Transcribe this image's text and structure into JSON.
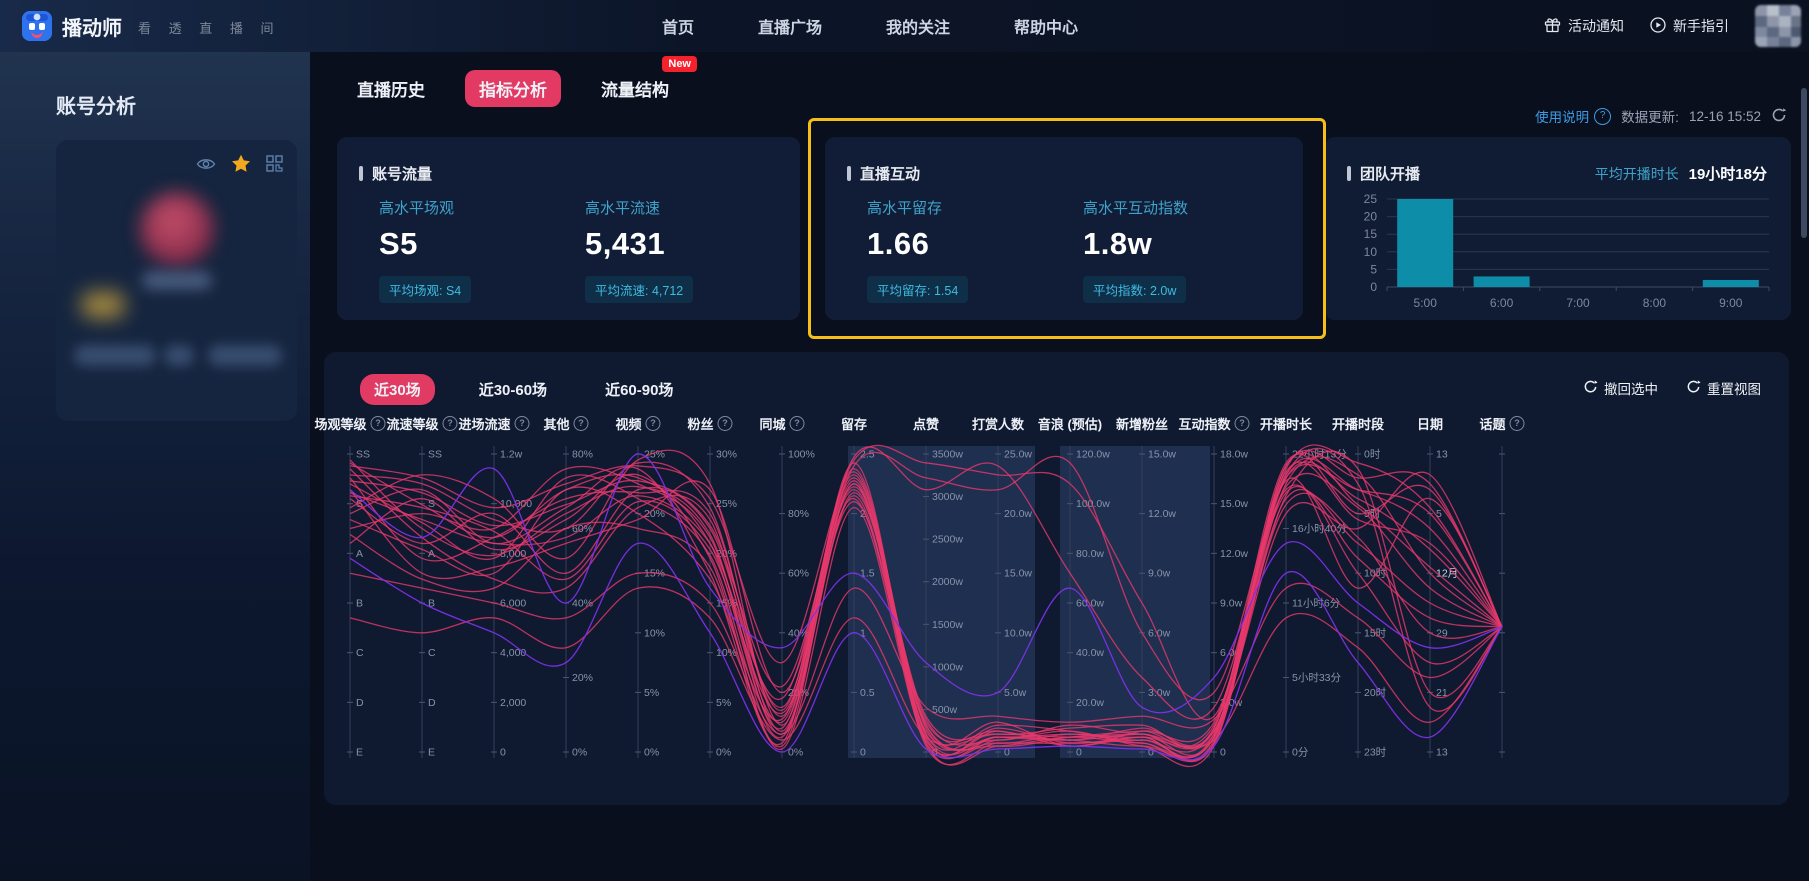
{
  "colors": {
    "accent_red": "#E23A63",
    "badge_new_red": "#F5212D",
    "teal_label": "#3FA3C9",
    "badge_text": "#3FBBE0",
    "badge_bg": "#0F2F49",
    "gold_highlight": "#F6BE16",
    "line_pink": "#E9386B",
    "line_purple": "#7D30E8",
    "bar_teal": "#0E8DA9",
    "link_blue": "#3D9BE4",
    "tick_gray": "#8793A9"
  },
  "topbar": {
    "brand": "播动师",
    "tagline": "看 透 直 播 间",
    "nav": [
      "首页",
      "直播广场",
      "我的关注",
      "帮助中心"
    ],
    "activity_label": "活动通知",
    "guide_label": "新手指引"
  },
  "sidebar": {
    "title": "账号分析"
  },
  "page_tabs": [
    {
      "label": "直播历史",
      "active": false
    },
    {
      "label": "指标分析",
      "active": true
    },
    {
      "label": "流量结构",
      "active": false,
      "badge": "New"
    }
  ],
  "meta": {
    "usage_link": "使用说明",
    "help_glyph": "?",
    "update_label": "数据更新:",
    "update_time": "12-16 15:52"
  },
  "stat_cards": [
    {
      "title": "账号流量",
      "metrics": [
        {
          "label": "高水平场观",
          "value": "S5",
          "badge": "平均场观: S4"
        },
        {
          "label": "高水平流速",
          "value": "5,431",
          "badge": "平均流速: 4,712"
        }
      ]
    },
    {
      "title": "直播互动",
      "highlighted": true,
      "metrics": [
        {
          "label": "高水平留存",
          "value": "1.66",
          "badge": "平均留存: 1.54"
        },
        {
          "label": "高水平互动指数",
          "value": "1.8w",
          "badge": "平均指数: 2.0w"
        }
      ]
    }
  ],
  "team_card": {
    "title": "团队开播",
    "avg_label": "平均开播时长",
    "avg_value": "19小时18分",
    "chart": {
      "type": "bar",
      "categories": [
        "5:00",
        "6:00",
        "7:00",
        "8:00",
        "9:00"
      ],
      "values": [
        25,
        3,
        0,
        0,
        2
      ],
      "yticks": [
        25,
        20,
        15,
        10,
        5,
        0
      ],
      "ylim": [
        0,
        25
      ]
    }
  },
  "chart_panel": {
    "range_tabs": [
      {
        "label": "近30场",
        "active": true
      },
      {
        "label": "近30-60场",
        "active": false
      },
      {
        "label": "近60-90场",
        "active": false
      }
    ],
    "actions": [
      {
        "label": "撤回选中"
      },
      {
        "label": "重置视图"
      }
    ],
    "help_glyph": "?",
    "axes": [
      {
        "label": "场观等级",
        "help": true,
        "ticks": [
          "SS",
          "S",
          "A",
          "B",
          "C",
          "D",
          "E"
        ]
      },
      {
        "label": "流速等级",
        "help": true,
        "ticks": [
          "SS",
          "S",
          "A",
          "B",
          "C",
          "D",
          "E"
        ]
      },
      {
        "label": "进场流速",
        "help": true,
        "ticks": [
          "1.2w",
          "10,000",
          "8,000",
          "6,000",
          "4,000",
          "2,000",
          "0"
        ]
      },
      {
        "label": "其他",
        "help": true,
        "ticks": [
          "80%",
          "60%",
          "40%",
          "20%",
          "0%"
        ]
      },
      {
        "label": "视频",
        "help": true,
        "ticks": [
          "25%",
          "20%",
          "15%",
          "10%",
          "5%",
          "0%"
        ]
      },
      {
        "label": "粉丝",
        "help": true,
        "ticks": [
          "30%",
          "25%",
          "20%",
          "15%",
          "10%",
          "5%",
          "0%"
        ]
      },
      {
        "label": "同城",
        "help": true,
        "ticks": [
          "100%",
          "80%",
          "60%",
          "40%",
          "20%",
          "0%"
        ]
      },
      {
        "label": "留存",
        "help": false,
        "ticks": [
          "2.5",
          "2",
          "1.5",
          "1",
          "0.5",
          "0"
        ]
      },
      {
        "label": "点赞",
        "help": false,
        "ticks": [
          "3500w",
          "3000w",
          "2500w",
          "2000w",
          "1500w",
          "1000w",
          "500w",
          "0"
        ]
      },
      {
        "label": "打赏人数",
        "help": false,
        "ticks": [
          "25.0w",
          "20.0w",
          "15.0w",
          "10.0w",
          "5.0w",
          "0"
        ]
      },
      {
        "label": "音浪 (预估)",
        "help": false,
        "ticks": [
          "120.0w",
          "100.0w",
          "80.0w",
          "60.0w",
          "40.0w",
          "20.0w",
          "0"
        ]
      },
      {
        "label": "新增粉丝",
        "help": false,
        "ticks": [
          "15.0w",
          "12.0w",
          "9.0w",
          "6.0w",
          "3.0w",
          "0"
        ]
      },
      {
        "label": "互动指数",
        "help": true,
        "ticks": [
          "18.0w",
          "15.0w",
          "12.0w",
          "9.0w",
          "6.0w",
          "3.0w",
          "0"
        ]
      },
      {
        "label": "开播时长",
        "help": false,
        "ticks": [
          "22小时13分",
          "16小时40分",
          "11小时6分",
          "5小时33分",
          "0分"
        ]
      },
      {
        "label": "开播时段",
        "help": false,
        "ticks": [
          "0时",
          "5时",
          "10时",
          "15时",
          "20时",
          "23时"
        ]
      },
      {
        "label": "日期",
        "help": false,
        "ticks": [
          "13",
          "5",
          "12月",
          "29",
          "21",
          "13"
        ]
      },
      {
        "label": "话题",
        "help": true,
        "ticks": []
      }
    ],
    "brushes": [
      [
        524,
        711
      ],
      [
        736,
        886
      ]
    ],
    "series": [
      {
        "color": "pink",
        "values": [
          0.97,
          0.83,
          0.72,
          0.88,
          0.92,
          0.7,
          0.08,
          0.95,
          0.06,
          0.05,
          0.04,
          0.06,
          0.05,
          0.93,
          0.88,
          0.75,
          0.42
        ]
      },
      {
        "color": "pink",
        "values": [
          0.93,
          0.9,
          0.78,
          0.75,
          0.97,
          0.82,
          0.12,
          0.92,
          0.09,
          0.03,
          0.06,
          0.04,
          0.08,
          0.97,
          0.8,
          0.88,
          0.42
        ]
      },
      {
        "color": "pink",
        "values": [
          0.9,
          0.77,
          0.65,
          0.92,
          0.85,
          0.66,
          0.05,
          0.9,
          0.04,
          0.08,
          0.03,
          0.05,
          0.03,
          0.9,
          0.93,
          0.6,
          0.42
        ]
      },
      {
        "color": "pink",
        "values": [
          0.85,
          0.7,
          0.8,
          0.6,
          0.88,
          0.75,
          0.15,
          0.88,
          0.12,
          0.06,
          0.08,
          0.09,
          0.06,
          0.85,
          0.7,
          0.5,
          0.42
        ]
      },
      {
        "color": "pink",
        "values": [
          0.8,
          0.88,
          0.7,
          0.82,
          0.95,
          0.6,
          0.03,
          0.97,
          0.03,
          0.02,
          0.05,
          0.03,
          0.04,
          0.95,
          0.97,
          0.82,
          0.42
        ]
      },
      {
        "color": "pink",
        "values": [
          0.88,
          0.6,
          0.62,
          0.7,
          0.78,
          0.88,
          0.2,
          0.85,
          0.07,
          0.1,
          0.02,
          0.07,
          0.1,
          0.88,
          0.6,
          0.3,
          0.42
        ]
      },
      {
        "color": "pink",
        "values": [
          0.75,
          0.8,
          0.75,
          0.95,
          0.9,
          0.72,
          0.1,
          0.93,
          0.05,
          0.04,
          0.07,
          0.02,
          0.02,
          0.92,
          0.85,
          0.68,
          0.42
        ]
      },
      {
        "color": "pink",
        "values": [
          0.95,
          0.72,
          0.58,
          0.55,
          0.82,
          0.78,
          0.07,
          0.87,
          0.1,
          0.07,
          0.04,
          0.08,
          0.07,
          0.8,
          0.75,
          0.93,
          0.42
        ]
      },
      {
        "color": "pink",
        "values": [
          0.7,
          0.85,
          0.68,
          0.78,
          0.93,
          0.65,
          0.02,
          0.9,
          0.02,
          0.03,
          0.03,
          0.04,
          0.05,
          0.93,
          0.9,
          0.15,
          0.42
        ]
      },
      {
        "color": "pink",
        "values": [
          0.92,
          0.65,
          0.72,
          0.85,
          0.87,
          0.8,
          0.14,
          0.94,
          0.08,
          0.05,
          0.06,
          0.05,
          0.09,
          0.87,
          0.65,
          0.45,
          0.42
        ]
      },
      {
        "color": "pink",
        "values": [
          0.96,
          0.92,
          0.82,
          0.9,
          0.96,
          0.85,
          0.3,
          0.98,
          0.97,
          0.93,
          0.9,
          0.5,
          0.12,
          0.96,
          0.92,
          0.9,
          0.42
        ]
      },
      {
        "color": "pink",
        "values": [
          0.91,
          0.87,
          0.76,
          0.83,
          0.91,
          0.76,
          0.22,
          0.96,
          0.92,
          0.88,
          0.97,
          0.4,
          0.2,
          0.92,
          0.88,
          0.8,
          0.42
        ]
      },
      {
        "color": "pink",
        "values": [
          0.87,
          0.78,
          0.7,
          0.72,
          0.86,
          0.7,
          0.18,
          0.99,
          0.88,
          0.96,
          0.6,
          0.25,
          0.15,
          0.89,
          0.82,
          0.55,
          0.42
        ]
      },
      {
        "color": "pink",
        "values": [
          0.6,
          0.55,
          0.5,
          0.45,
          0.6,
          0.5,
          0.06,
          0.55,
          0.15,
          0.12,
          0.1,
          0.12,
          0.11,
          0.55,
          0.45,
          0.25,
          0.42
        ]
      },
      {
        "color": "pink",
        "values": [
          0.45,
          0.4,
          0.45,
          0.35,
          0.55,
          0.45,
          0.04,
          0.45,
          0.05,
          0.06,
          0.05,
          0.06,
          0.04,
          0.45,
          0.35,
          0.1,
          0.42
        ]
      },
      {
        "color": "pink",
        "values": [
          0.82,
          0.93,
          0.85,
          0.65,
          0.98,
          0.9,
          0.09,
          0.91,
          0.06,
          0.09,
          0.07,
          0.03,
          0.06,
          0.94,
          0.78,
          0.7,
          0.42
        ]
      },
      {
        "color": "pink",
        "values": [
          0.78,
          0.68,
          0.6,
          0.88,
          0.8,
          0.58,
          0.11,
          0.89,
          0.11,
          0.04,
          0.09,
          0.06,
          0.08,
          0.91,
          0.55,
          0.85,
          0.42
        ]
      },
      {
        "color": "pink",
        "values": [
          0.98,
          0.75,
          0.66,
          0.8,
          0.89,
          0.73,
          0.06,
          0.86,
          0.04,
          0.07,
          0.02,
          0.05,
          0.03,
          0.96,
          0.83,
          0.62,
          0.42
        ]
      },
      {
        "color": "pink",
        "values": [
          0.86,
          0.82,
          0.74,
          0.58,
          0.84,
          0.68,
          0.13,
          0.84,
          0.09,
          0.02,
          0.05,
          0.07,
          0.07,
          0.83,
          0.72,
          0.4,
          0.42
        ]
      },
      {
        "color": "pink",
        "values": [
          0.73,
          0.58,
          0.55,
          0.75,
          0.75,
          0.62,
          0.01,
          0.82,
          0.03,
          0.05,
          0.04,
          0.02,
          0.05,
          0.86,
          0.95,
          0.2,
          0.42
        ]
      },
      {
        "color": "purple",
        "values": [
          0.88,
          0.72,
          0.95,
          0.5,
          1.0,
          0.55,
          0.35,
          0.6,
          0.3,
          0.2,
          0.55,
          0.15,
          0.25,
          0.7,
          0.5,
          0.35,
          0.42
        ]
      },
      {
        "color": "purple",
        "values": [
          0.65,
          0.5,
          0.4,
          0.3,
          0.7,
          0.4,
          0.0,
          0.4,
          0.01,
          0.01,
          0.02,
          0.01,
          0.02,
          0.6,
          0.3,
          0.05,
          0.42
        ]
      }
    ]
  }
}
